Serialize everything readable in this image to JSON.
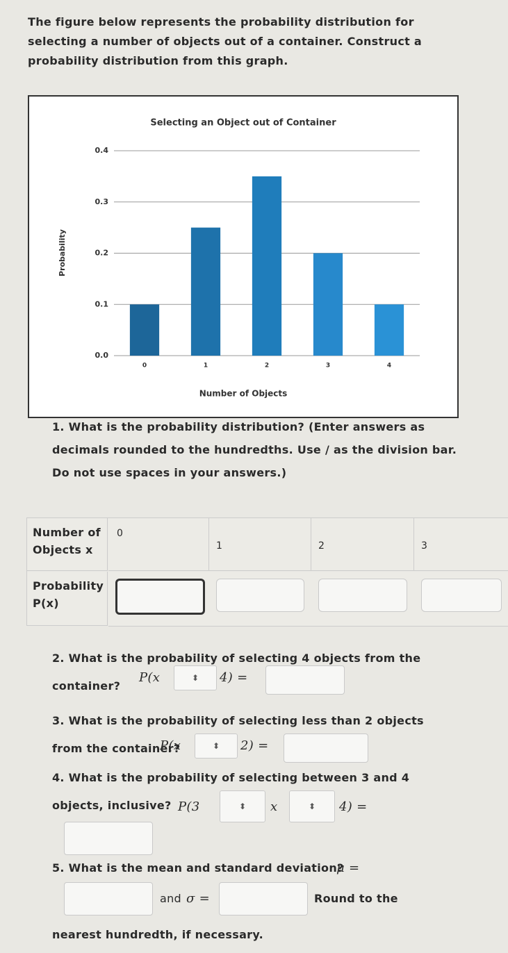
{
  "intro": "The figure below represents the probability distribution for selecting a number of objects out of a container. Construct a probability distribution from this graph.",
  "chart_data": {
    "type": "bar",
    "title": "Selecting an Object out of Container",
    "x_label": "Number of Objects",
    "y_label": "Probability",
    "categories": [
      "0",
      "1",
      "2",
      "3",
      "4"
    ],
    "values": [
      0.1,
      0.25,
      0.35,
      0.2,
      0.1
    ],
    "colors": [
      "#1d6699",
      "#1e72ab",
      "#1f7dbb",
      "#2789cc",
      "#2a92d6"
    ],
    "ylim": [
      0,
      0.4
    ],
    "yticks": [
      {
        "value": 0,
        "label": "0.0"
      },
      0.1,
      0.2,
      0.3,
      0.4
    ],
    "grid": true
  },
  "question1": "1. What is the probability distribution? (Enter answers as decimals rounded to the hundredths. Use / as the division bar. Do not use spaces in your answers.)",
  "table": {
    "row_headers": [
      "Number of Objects x",
      "Probability P(x)"
    ],
    "columns": [
      "0",
      "1",
      "2",
      "3"
    ]
  },
  "question2": {
    "text": "2. What is the probability of selecting 4 objects from the container?",
    "expr": [
      "P(x",
      "4) ="
    ]
  },
  "question3": {
    "text": "3. What is the probability of selecting less than 2 objects from the container?",
    "expr": [
      "P(x",
      "2) ="
    ]
  },
  "question4": {
    "text": "4. What is the probability of selecting between 3 and 4 objects, inclusive?",
    "expr": [
      "P(3",
      "x",
      "4) ="
    ]
  },
  "question5": {
    "text": "5. What is the mean and standard deviation?",
    "mu": "μ =",
    "and": "and",
    "sigma": "σ =",
    "note": "Round to the nearest hundredth, if necessary."
  }
}
